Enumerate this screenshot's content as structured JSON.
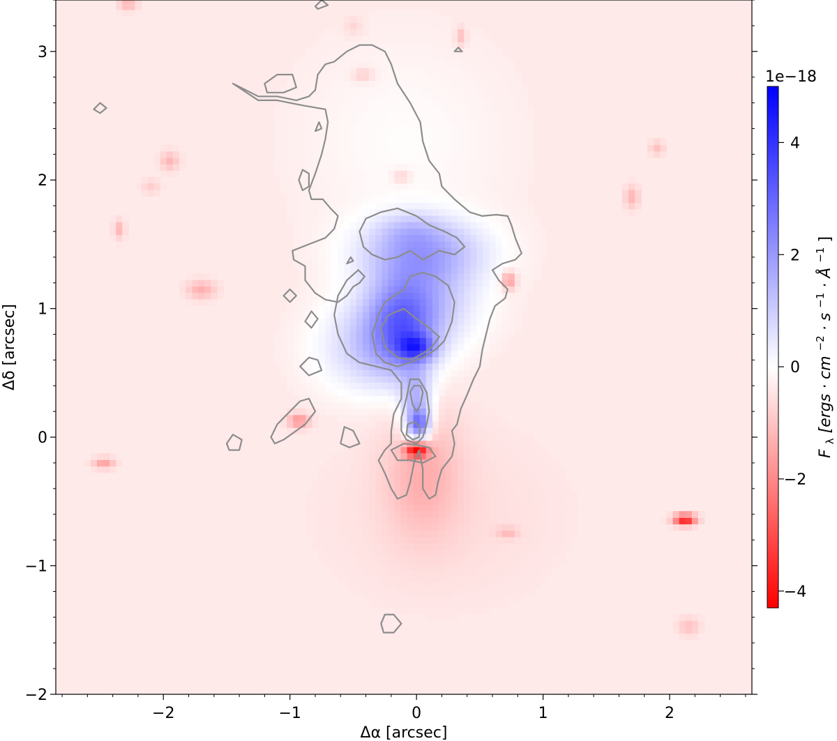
{
  "chart_data": {
    "type": "heatmap",
    "xlabel": "Δα [arcsec]",
    "ylabel": "Δδ [arcsec]",
    "xlim": [
      -2.85,
      2.65
    ],
    "ylim": [
      -2.0,
      3.4
    ],
    "xticks": [
      {
        "value": -2,
        "label": "−2"
      },
      {
        "value": -1,
        "label": "−1"
      },
      {
        "value": 0,
        "label": "0"
      },
      {
        "value": 1,
        "label": "1"
      },
      {
        "value": 2,
        "label": "2"
      }
    ],
    "yticks": [
      {
        "value": -2,
        "label": "−2"
      },
      {
        "value": -1,
        "label": "−1"
      },
      {
        "value": 0,
        "label": "0"
      },
      {
        "value": 1,
        "label": "1"
      },
      {
        "value": 2,
        "label": "2"
      },
      {
        "value": 3,
        "label": "3"
      }
    ],
    "colorbar": {
      "label": "F_λ [ergs · cm^−2 · s^−1 · Å^−1]",
      "label_parts": [
        "F",
        "λ",
        " [ergs · cm",
        "−2",
        " · s",
        "−1",
        " · Å",
        "−1",
        "]"
      ],
      "offset_text": "1e−18",
      "range": [
        -4.3,
        5.0
      ],
      "ticks": [
        {
          "value": 4,
          "label": "4"
        },
        {
          "value": 2,
          "label": "2"
        },
        {
          "value": 0,
          "label": "0"
        },
        {
          "value": -2,
          "label": "−2"
        },
        {
          "value": -4,
          "label": "−4"
        }
      ],
      "colormap": "bwr_r",
      "colors": {
        "positive": "#0000ff",
        "zero": "#ffffff",
        "negative": "#ff0000"
      }
    },
    "background_value": -0.35,
    "emission_blobs": [
      {
        "x": 0.0,
        "y": 0.7,
        "sx": 0.1,
        "sy": 0.07,
        "amp": 2.3
      },
      {
        "x": -0.12,
        "y": 0.85,
        "sx": 0.18,
        "sy": 0.25,
        "amp": 2.0
      },
      {
        "x": 0.05,
        "y": 1.05,
        "sx": 0.3,
        "sy": 0.25,
        "amp": 1.5
      },
      {
        "x": 0.05,
        "y": 1.45,
        "sx": 0.35,
        "sy": 0.18,
        "amp": 1.8
      },
      {
        "x": -0.05,
        "y": 1.62,
        "sx": 0.18,
        "sy": 0.1,
        "amp": 0.6
      },
      {
        "x": -0.35,
        "y": 0.7,
        "sx": 0.3,
        "sy": 0.25,
        "amp": 1.3
      },
      {
        "x": 0.02,
        "y": 0.1,
        "sx": 0.06,
        "sy": 0.08,
        "amp": 2.5
      },
      {
        "x": 0.0,
        "y": 0.25,
        "sx": 0.09,
        "sy": 0.2,
        "amp": 1.8
      },
      {
        "x": -0.1,
        "y": 2.3,
        "sx": 0.55,
        "sy": 0.55,
        "amp": 0.3
      }
    ],
    "absorption_blobs": [
      {
        "x": 0.0,
        "y": -0.1,
        "sx": 0.06,
        "sy": 0.04,
        "amp": -3.8
      },
      {
        "x": 0.05,
        "y": -0.25,
        "sx": 0.2,
        "sy": 0.35,
        "amp": -0.9
      },
      {
        "x": 2.12,
        "y": -0.64,
        "sx": 0.06,
        "sy": 0.03,
        "amp": -3.5
      },
      {
        "x": -0.93,
        "y": 0.13,
        "sx": 0.06,
        "sy": 0.04,
        "amp": -1.5
      },
      {
        "x": 0.73,
        "y": 1.22,
        "sx": 0.04,
        "sy": 0.05,
        "amp": -1.5
      },
      {
        "x": -1.7,
        "y": 1.15,
        "sx": 0.08,
        "sy": 0.05,
        "amp": -1.0
      },
      {
        "x": -2.47,
        "y": -0.2,
        "sx": 0.06,
        "sy": 0.03,
        "amp": -1.2
      },
      {
        "x": -2.28,
        "y": 3.38,
        "sx": 0.05,
        "sy": 0.04,
        "amp": -1.0
      },
      {
        "x": -1.95,
        "y": 2.15,
        "sx": 0.05,
        "sy": 0.05,
        "amp": -0.9
      },
      {
        "x": -2.35,
        "y": 1.62,
        "sx": 0.03,
        "sy": 0.05,
        "amp": -0.9
      },
      {
        "x": 1.7,
        "y": 1.87,
        "sx": 0.04,
        "sy": 0.06,
        "amp": -0.9
      },
      {
        "x": 1.9,
        "y": 2.25,
        "sx": 0.04,
        "sy": 0.04,
        "amp": -0.7
      },
      {
        "x": 2.15,
        "y": -1.47,
        "sx": 0.06,
        "sy": 0.05,
        "amp": -0.7
      },
      {
        "x": 0.35,
        "y": 3.12,
        "sx": 0.03,
        "sy": 0.05,
        "amp": -0.8
      },
      {
        "x": -0.42,
        "y": 2.82,
        "sx": 0.06,
        "sy": 0.04,
        "amp": -0.6
      },
      {
        "x": 0.72,
        "y": -0.74,
        "sx": 0.06,
        "sy": 0.03,
        "amp": -0.7
      },
      {
        "x": -0.12,
        "y": 2.03,
        "sx": 0.05,
        "sy": 0.04,
        "amp": -0.6
      },
      {
        "x": -2.1,
        "y": 1.95,
        "sx": 0.05,
        "sy": 0.04,
        "amp": -0.5
      },
      {
        "x": -0.5,
        "y": 3.2,
        "sx": 0.05,
        "sy": 0.05,
        "amp": -0.4
      },
      {
        "x": 0.2,
        "y": -0.6,
        "sx": 0.6,
        "sy": 0.45,
        "amp": -0.25
      }
    ],
    "contours": [
      [
        [
          -1.45,
          2.75
        ],
        [
          -1.25,
          2.62
        ],
        [
          -1.1,
          2.62
        ],
        [
          -0.9,
          2.58
        ],
        [
          -0.72,
          2.55
        ],
        [
          -0.7,
          2.45
        ],
        [
          -0.72,
          2.32
        ],
        [
          -0.75,
          2.2
        ],
        [
          -0.8,
          2.05
        ],
        [
          -0.85,
          1.92
        ],
        [
          -0.83,
          1.85
        ],
        [
          -0.74,
          1.85
        ],
        [
          -0.68,
          1.78
        ],
        [
          -0.62,
          1.72
        ],
        [
          -0.65,
          1.62
        ],
        [
          -0.72,
          1.55
        ],
        [
          -0.85,
          1.5
        ],
        [
          -0.98,
          1.45
        ],
        [
          -0.97,
          1.38
        ],
        [
          -0.88,
          1.33
        ],
        [
          -0.88,
          1.22
        ],
        [
          -0.8,
          1.12
        ],
        [
          -0.72,
          1.07
        ],
        [
          -0.62,
          1.05
        ],
        [
          -0.55,
          1.1
        ],
        [
          -0.5,
          1.17
        ],
        [
          -0.45,
          1.2
        ],
        [
          -0.41,
          1.25
        ],
        [
          -0.46,
          1.3
        ],
        [
          -0.55,
          1.22
        ],
        [
          -0.62,
          1.1
        ],
        [
          -0.65,
          0.95
        ],
        [
          -0.62,
          0.8
        ],
        [
          -0.55,
          0.65
        ],
        [
          -0.45,
          0.58
        ],
        [
          -0.32,
          0.55
        ],
        [
          -0.2,
          0.52
        ],
        [
          -0.12,
          0.42
        ],
        [
          -0.12,
          0.3
        ],
        [
          -0.18,
          0.18
        ],
        [
          -0.2,
          0.05
        ],
        [
          -0.2,
          -0.05
        ],
        [
          -0.25,
          -0.1
        ],
        [
          -0.3,
          -0.18
        ],
        [
          -0.25,
          -0.28
        ],
        [
          -0.2,
          -0.4
        ],
        [
          -0.15,
          -0.48
        ],
        [
          -0.08,
          -0.45
        ],
        [
          -0.05,
          -0.35
        ],
        [
          -0.02,
          -0.2
        ],
        [
          0.02,
          -0.1
        ],
        [
          0.05,
          -0.25
        ],
        [
          0.05,
          -0.4
        ],
        [
          0.1,
          -0.48
        ],
        [
          0.15,
          -0.45
        ],
        [
          0.17,
          -0.35
        ],
        [
          0.2,
          -0.25
        ],
        [
          0.28,
          -0.15
        ],
        [
          0.3,
          -0.05
        ],
        [
          0.28,
          0.05
        ],
        [
          0.32,
          0.1
        ],
        [
          0.35,
          0.22
        ],
        [
          0.4,
          0.33
        ],
        [
          0.45,
          0.45
        ],
        [
          0.5,
          0.55
        ],
        [
          0.52,
          0.68
        ],
        [
          0.55,
          0.8
        ],
        [
          0.58,
          0.92
        ],
        [
          0.62,
          1.02
        ],
        [
          0.7,
          1.08
        ],
        [
          0.72,
          1.15
        ],
        [
          0.65,
          1.22
        ],
        [
          0.6,
          1.3
        ],
        [
          0.68,
          1.35
        ],
        [
          0.78,
          1.38
        ],
        [
          0.83,
          1.43
        ],
        [
          0.78,
          1.55
        ],
        [
          0.75,
          1.65
        ],
        [
          0.72,
          1.72
        ],
        [
          0.63,
          1.73
        ],
        [
          0.52,
          1.72
        ],
        [
          0.42,
          1.75
        ],
        [
          0.3,
          1.85
        ],
        [
          0.2,
          1.95
        ],
        [
          0.18,
          2.05
        ],
        [
          0.1,
          2.15
        ],
        [
          0.05,
          2.3
        ],
        [
          0.03,
          2.45
        ],
        [
          -0.05,
          2.6
        ],
        [
          -0.15,
          2.75
        ],
        [
          -0.2,
          2.9
        ],
        [
          -0.25,
          3.0
        ],
        [
          -0.35,
          3.05
        ],
        [
          -0.45,
          3.05
        ],
        [
          -0.55,
          3.0
        ],
        [
          -0.65,
          2.92
        ],
        [
          -0.72,
          2.9
        ],
        [
          -0.78,
          2.82
        ],
        [
          -0.8,
          2.7
        ],
        [
          -0.85,
          2.65
        ],
        [
          -0.95,
          2.62
        ],
        [
          -1.1,
          2.65
        ],
        [
          -1.25,
          2.65
        ],
        [
          -1.45,
          2.75
        ]
      ],
      [
        [
          -0.45,
          1.6
        ],
        [
          -0.4,
          1.7
        ],
        [
          -0.28,
          1.75
        ],
        [
          -0.15,
          1.78
        ],
        [
          0.0,
          1.72
        ],
        [
          0.1,
          1.65
        ],
        [
          0.22,
          1.6
        ],
        [
          0.32,
          1.55
        ],
        [
          0.38,
          1.48
        ],
        [
          0.3,
          1.42
        ],
        [
          0.18,
          1.45
        ],
        [
          0.05,
          1.38
        ],
        [
          -0.05,
          1.45
        ],
        [
          -0.15,
          1.4
        ],
        [
          -0.25,
          1.38
        ],
        [
          -0.35,
          1.42
        ],
        [
          -0.42,
          1.48
        ],
        [
          -0.45,
          1.6
        ]
      ],
      [
        [
          -0.35,
          0.8
        ],
        [
          -0.3,
          0.95
        ],
        [
          -0.25,
          1.05
        ],
        [
          -0.1,
          1.15
        ],
        [
          -0.05,
          1.25
        ],
        [
          0.05,
          1.28
        ],
        [
          0.15,
          1.25
        ],
        [
          0.25,
          1.18
        ],
        [
          0.3,
          1.05
        ],
        [
          0.28,
          0.9
        ],
        [
          0.22,
          0.75
        ],
        [
          0.15,
          0.68
        ],
        [
          0.05,
          0.62
        ],
        [
          -0.05,
          0.58
        ],
        [
          -0.15,
          0.55
        ],
        [
          -0.25,
          0.58
        ],
        [
          -0.32,
          0.65
        ],
        [
          -0.35,
          0.8
        ]
      ],
      [
        [
          -0.28,
          0.85
        ],
        [
          -0.22,
          0.95
        ],
        [
          -0.1,
          1.0
        ],
        [
          0.0,
          0.92
        ],
        [
          0.1,
          0.85
        ],
        [
          0.18,
          0.78
        ],
        [
          0.12,
          0.7
        ],
        [
          0.05,
          0.65
        ],
        [
          -0.05,
          0.6
        ],
        [
          -0.15,
          0.62
        ],
        [
          -0.25,
          0.7
        ],
        [
          -0.28,
          0.85
        ]
      ],
      [
        [
          -0.05,
          0.45
        ],
        [
          -0.08,
          0.3
        ],
        [
          -0.12,
          0.15
        ],
        [
          -0.12,
          0.05
        ],
        [
          -0.08,
          -0.02
        ],
        [
          0.0,
          -0.05
        ],
        [
          0.05,
          0.0
        ],
        [
          0.08,
          0.1
        ],
        [
          0.1,
          0.2
        ],
        [
          0.08,
          0.35
        ],
        [
          0.02,
          0.45
        ],
        [
          -0.05,
          0.45
        ]
      ],
      [
        [
          -0.05,
          0.35
        ],
        [
          -0.03,
          0.25
        ],
        [
          0.0,
          0.2
        ],
        [
          0.03,
          0.25
        ],
        [
          0.05,
          0.35
        ],
        [
          0.03,
          0.4
        ],
        [
          -0.02,
          0.4
        ],
        [
          -0.05,
          0.35
        ]
      ],
      [
        [
          -0.08,
          0.02
        ],
        [
          -0.07,
          0.1
        ],
        [
          -0.02,
          0.12
        ],
        [
          0.03,
          0.08
        ],
        [
          0.02,
          0.0
        ],
        [
          -0.03,
          -0.02
        ],
        [
          -0.08,
          0.02
        ]
      ],
      [
        [
          -0.2,
          -0.1
        ],
        [
          -0.1,
          -0.05
        ],
        [
          0.0,
          -0.06
        ],
        [
          0.1,
          -0.08
        ],
        [
          0.15,
          -0.15
        ],
        [
          0.05,
          -0.2
        ],
        [
          -0.05,
          -0.18
        ],
        [
          -0.15,
          -0.18
        ],
        [
          -0.2,
          -0.1
        ]
      ],
      [
        [
          -1.2,
          2.75
        ],
        [
          -1.1,
          2.82
        ],
        [
          -0.98,
          2.82
        ],
        [
          -0.95,
          2.72
        ],
        [
          -1.05,
          2.68
        ],
        [
          -1.18,
          2.68
        ],
        [
          -1.2,
          2.75
        ]
      ],
      [
        [
          -0.93,
          2.0
        ],
        [
          -0.9,
          2.08
        ],
        [
          -0.85,
          2.05
        ],
        [
          -0.85,
          1.95
        ],
        [
          -0.9,
          1.92
        ],
        [
          -0.93,
          2.0
        ]
      ],
      [
        [
          -0.8,
          2.38
        ],
        [
          -0.77,
          2.45
        ],
        [
          -0.75,
          2.4
        ],
        [
          -0.8,
          2.38
        ]
      ],
      [
        [
          -1.05,
          1.1
        ],
        [
          -1.0,
          1.15
        ],
        [
          -0.95,
          1.1
        ],
        [
          -1.0,
          1.05
        ],
        [
          -1.05,
          1.1
        ]
      ],
      [
        [
          -0.88,
          0.9
        ],
        [
          -0.83,
          0.98
        ],
        [
          -0.78,
          0.92
        ],
        [
          -0.83,
          0.85
        ],
        [
          -0.88,
          0.9
        ]
      ],
      [
        [
          -0.92,
          0.55
        ],
        [
          -0.85,
          0.62
        ],
        [
          -0.78,
          0.6
        ],
        [
          -0.75,
          0.52
        ],
        [
          -0.85,
          0.48
        ],
        [
          -0.92,
          0.55
        ]
      ],
      [
        [
          -1.15,
          0.0
        ],
        [
          -1.1,
          0.1
        ],
        [
          -1.0,
          0.2
        ],
        [
          -0.92,
          0.28
        ],
        [
          -0.85,
          0.3
        ],
        [
          -0.8,
          0.2
        ],
        [
          -0.88,
          0.1
        ],
        [
          -0.95,
          0.05
        ],
        [
          -1.05,
          -0.02
        ],
        [
          -1.12,
          -0.05
        ],
        [
          -1.15,
          0.0
        ]
      ],
      [
        [
          -0.6,
          -0.05
        ],
        [
          -0.57,
          0.08
        ],
        [
          -0.5,
          0.05
        ],
        [
          -0.45,
          -0.05
        ],
        [
          -0.53,
          -0.08
        ],
        [
          -0.6,
          -0.05
        ]
      ],
      [
        [
          -1.5,
          -0.05
        ],
        [
          -1.45,
          0.02
        ],
        [
          -1.38,
          -0.02
        ],
        [
          -1.4,
          -0.1
        ],
        [
          -1.48,
          -0.1
        ],
        [
          -1.5,
          -0.05
        ]
      ],
      [
        [
          -2.55,
          2.55
        ],
        [
          -2.5,
          2.6
        ],
        [
          -2.45,
          2.56
        ],
        [
          -2.5,
          2.52
        ],
        [
          -2.55,
          2.55
        ]
      ],
      [
        [
          -0.8,
          3.35
        ],
        [
          -0.75,
          3.4
        ],
        [
          -0.7,
          3.36
        ],
        [
          -0.78,
          3.33
        ],
        [
          -0.8,
          3.35
        ]
      ],
      [
        [
          0.3,
          3.0
        ],
        [
          0.33,
          3.03
        ],
        [
          0.36,
          3.0
        ],
        [
          0.3,
          3.0
        ]
      ],
      [
        [
          -0.28,
          -1.45
        ],
        [
          -0.25,
          -1.38
        ],
        [
          -0.18,
          -1.38
        ],
        [
          -0.12,
          -1.45
        ],
        [
          -0.18,
          -1.52
        ],
        [
          -0.26,
          -1.52
        ],
        [
          -0.28,
          -1.45
        ]
      ],
      [
        [
          -0.55,
          1.35
        ],
        [
          -0.52,
          1.4
        ],
        [
          -0.5,
          1.37
        ],
        [
          -0.55,
          1.35
        ]
      ]
    ]
  }
}
